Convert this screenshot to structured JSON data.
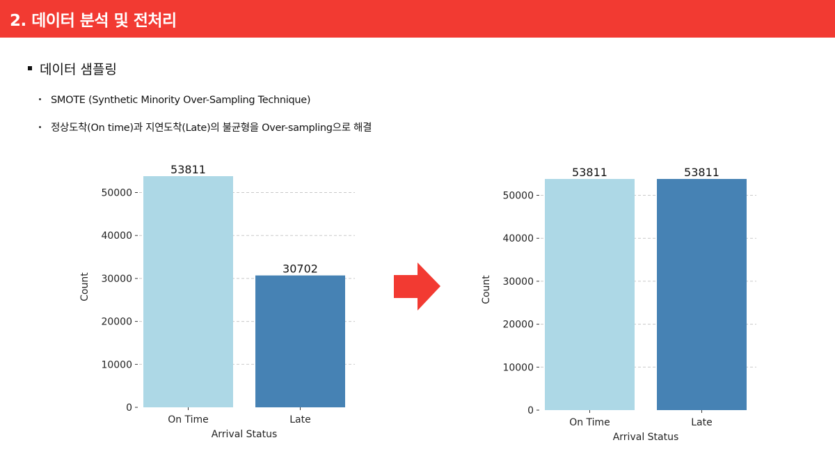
{
  "header": {
    "title": "2. 데이터 분석 및 전처리"
  },
  "section": {
    "heading": "데이터 샘플링"
  },
  "bullets": [
    "SMOTE (Synthetic Minority Over-Sampling Technique)",
    "정상도착(On time)과 지연도착(Late)의 불균형을 Over-sampling으로 해결"
  ],
  "colors": {
    "header_bg": "#f23a32",
    "arrow": "#f23a32",
    "on_time": "#add8e6",
    "late": "#4682b4"
  },
  "chart_data": [
    {
      "type": "bar",
      "categories": [
        "On Time",
        "Late"
      ],
      "values": [
        53811,
        30702
      ],
      "data_labels": [
        "53811",
        "30702"
      ],
      "colors": [
        "#add8e6",
        "#4682b4"
      ],
      "xlabel": "Arrival Status",
      "ylabel": "Count",
      "ylim": [
        0,
        53811
      ],
      "yticks": [
        0,
        10000,
        20000,
        30000,
        40000,
        50000
      ],
      "ytick_labels": [
        "0",
        "10000",
        "20000",
        "30000",
        "40000",
        "50000"
      ],
      "grid": "horizontal-dashed"
    },
    {
      "type": "bar",
      "categories": [
        "On Time",
        "Late"
      ],
      "values": [
        53811,
        53811
      ],
      "data_labels": [
        "53811",
        "53811"
      ],
      "colors": [
        "#add8e6",
        "#4682b4"
      ],
      "xlabel": "Arrival Status",
      "ylabel": "Count",
      "ylim": [
        0,
        53811
      ],
      "yticks": [
        0,
        10000,
        20000,
        30000,
        40000,
        50000
      ],
      "ytick_labels": [
        "0",
        "10000",
        "20000",
        "30000",
        "40000",
        "50000"
      ],
      "grid": "horizontal-dashed"
    }
  ]
}
